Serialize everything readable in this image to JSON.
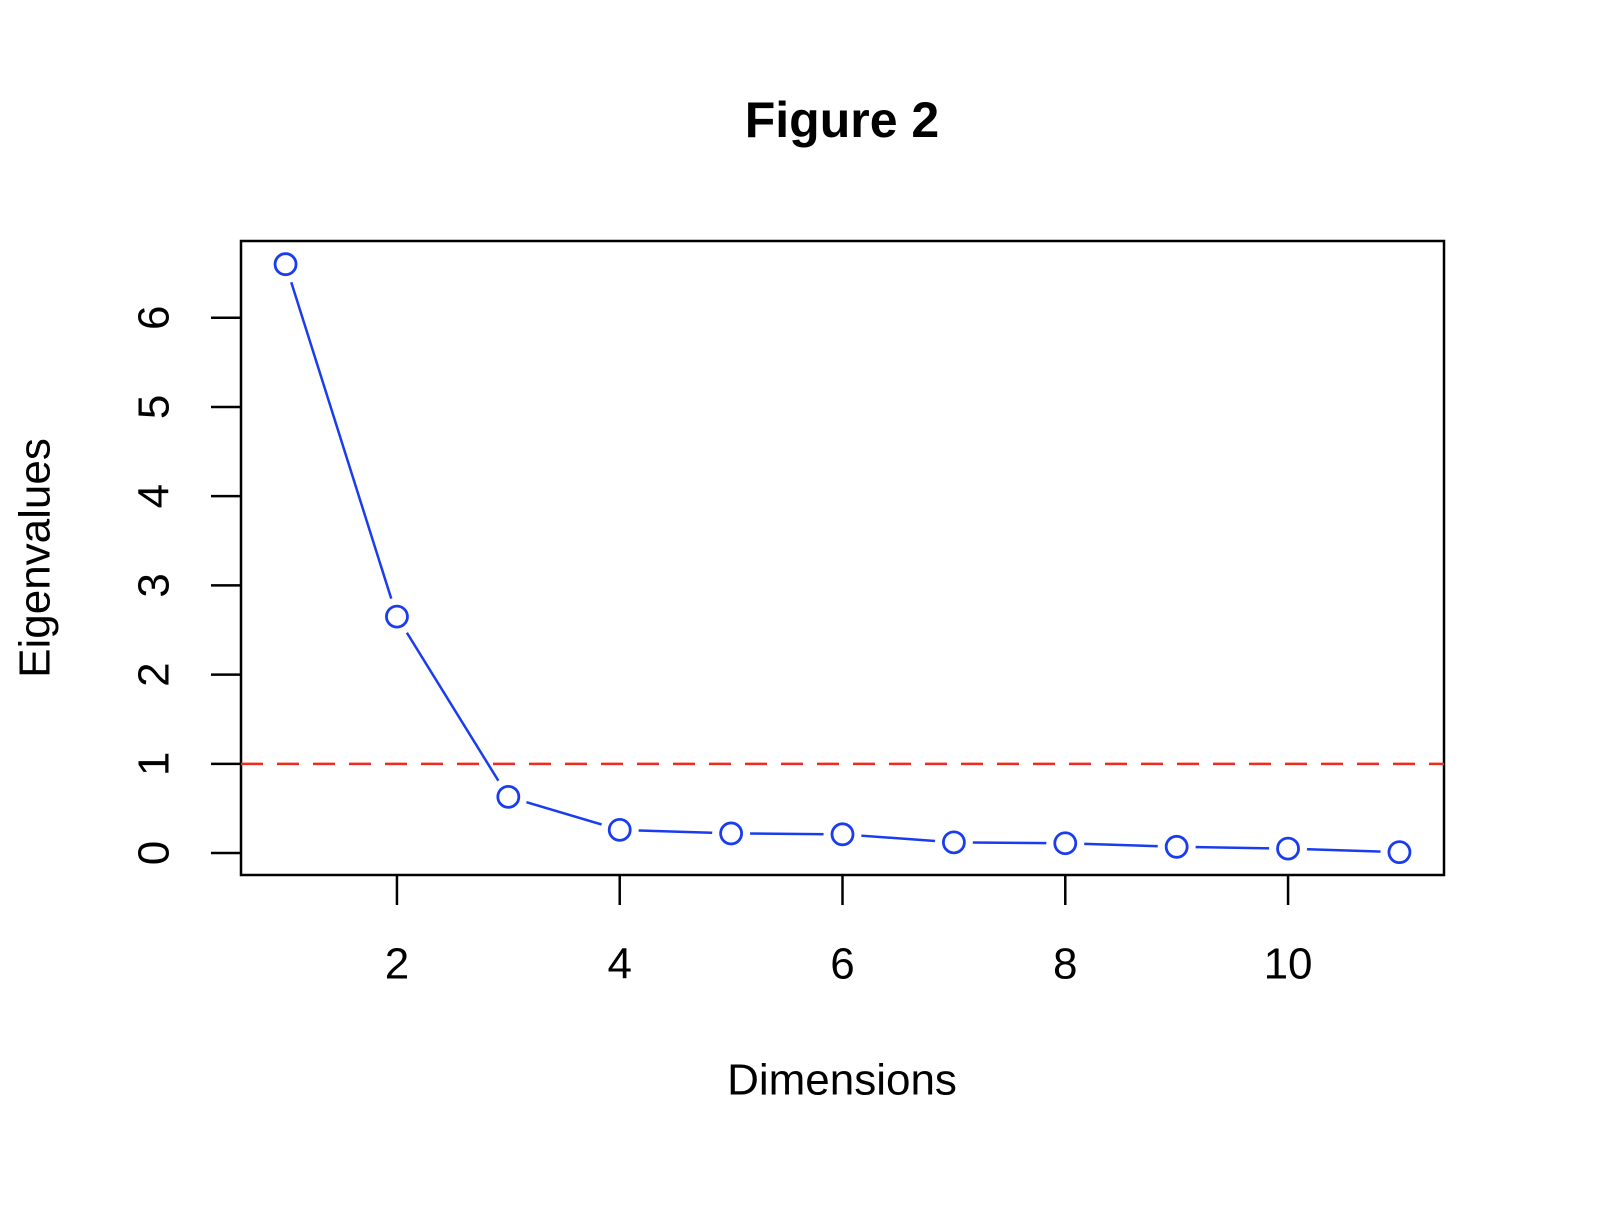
{
  "chart_data": {
    "type": "line",
    "title": "Figure 2",
    "xlabel": "Dimensions",
    "ylabel": "Eigenvalues",
    "x": [
      1,
      2,
      3,
      4,
      5,
      6,
      7,
      8,
      9,
      10,
      11
    ],
    "series": [
      {
        "color": "#1a3cf0",
        "values": [
          6.6,
          2.65,
          0.63,
          0.26,
          0.22,
          0.21,
          0.12,
          0.11,
          0.07,
          0.05,
          0.01
        ]
      }
    ],
    "xlim": [
      0.6,
      11.4
    ],
    "ylim": [
      -0.246,
      6.86
    ],
    "xticks": [
      2,
      4,
      6,
      8,
      10
    ],
    "yticks": [
      0,
      1,
      2,
      3,
      4,
      5,
      6
    ],
    "reference_line": {
      "value": 1,
      "color": "#f02a1e"
    }
  }
}
